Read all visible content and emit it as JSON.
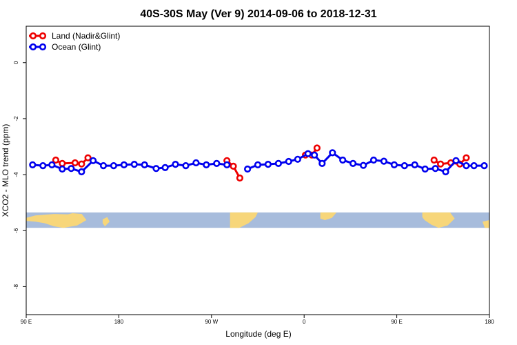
{
  "chart_data": {
    "type": "line",
    "title": "40S-30S May (Ver 9)   2014-09-06 to 2018-12-31",
    "xlabel": "Longitude (deg E)",
    "ylabel": "XCO2 - MLO trend (ppm)",
    "xlim": [
      90,
      270
    ],
    "ylim": [
      -9.0,
      1.3
    ],
    "x_ticks": [
      {
        "value": 90,
        "label": "90 E"
      },
      {
        "value": 126,
        "label": "180"
      },
      {
        "value": 162,
        "label": "90 W"
      },
      {
        "value": 198,
        "label": "0"
      },
      {
        "value": 234,
        "label": "90 E"
      },
      {
        "value": 270,
        "label": "180"
      }
    ],
    "y_ticks": [
      0,
      -2,
      -4,
      -6,
      -8
    ],
    "legend_position": "top-left",
    "map_strip": {
      "ocean_color": "#a7bcdc",
      "land_color": "#f7d67a",
      "y_range": [
        -5.35,
        -5.9
      ]
    },
    "series": [
      {
        "name": "Land (Nadir&Glint)",
        "color": "#ee0000",
        "segments": [
          {
            "x": [
              101.5,
              104,
              109,
              111.5,
              114
            ],
            "y": [
              -3.48,
              -3.6,
              -3.58,
              -3.62,
              -3.4
            ]
          },
          {
            "x": [
              168,
              170.5,
              173
            ],
            "y": [
              -3.5,
              -3.7,
              -4.12
            ]
          },
          {
            "x": [
              198.5,
              201,
              203
            ],
            "y": [
              -3.3,
              -3.3,
              -3.05
            ]
          },
          {
            "x": [
              248.5,
              251,
              255,
              258.5,
              261
            ],
            "y": [
              -3.48,
              -3.62,
              -3.58,
              -3.62,
              -3.4
            ]
          }
        ]
      },
      {
        "name": "Ocean (Glint)",
        "color": "#0000ee",
        "segments": [
          {
            "x": [
              92.5,
              96.5,
              100,
              104,
              107.5,
              111.5,
              116,
              120,
              124,
              128,
              132,
              136,
              140.5,
              144,
              148,
              152,
              156,
              160,
              164,
              168
            ],
            "y": [
              -3.65,
              -3.68,
              -3.65,
              -3.8,
              -3.78,
              -3.9,
              -3.5,
              -3.68,
              -3.68,
              -3.65,
              -3.63,
              -3.65,
              -3.78,
              -3.75,
              -3.63,
              -3.68,
              -3.58,
              -3.65,
              -3.6,
              -3.65
            ]
          },
          {
            "x": [
              176,
              180,
              184,
              188,
              192,
              195.5,
              199.5,
              202,
              205,
              209,
              213,
              217,
              221,
              225,
              229,
              233,
              237,
              241,
              245,
              249,
              253,
              257,
              261,
              264,
              268
            ],
            "y": [
              -3.8,
              -3.65,
              -3.63,
              -3.6,
              -3.53,
              -3.45,
              -3.25,
              -3.3,
              -3.6,
              -3.22,
              -3.48,
              -3.6,
              -3.67,
              -3.48,
              -3.52,
              -3.65,
              -3.68,
              -3.65,
              -3.8,
              -3.78,
              -3.9,
              -3.5,
              -3.68,
              -3.68,
              -3.68
            ]
          }
        ]
      }
    ]
  }
}
